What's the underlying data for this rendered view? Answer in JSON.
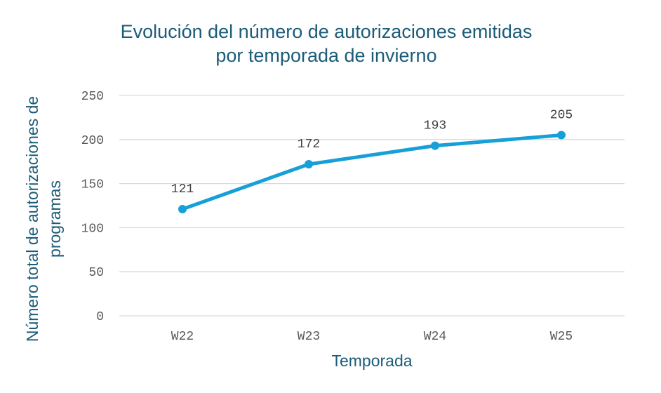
{
  "chart_data": {
    "type": "line",
    "title": [
      "Evolución del número de autorizaciones emitidas",
      "por temporada de invierno"
    ],
    "xlabel": "Temporada",
    "ylabel": [
      "Número total de autorizaciones de",
      "programas"
    ],
    "categories": [
      "W22",
      "W23",
      "W24",
      "W25"
    ],
    "values": [
      121,
      172,
      193,
      205
    ],
    "data_labels": [
      "121",
      "172",
      "193",
      "205"
    ],
    "ylim": [
      0,
      250
    ],
    "yticks": [
      "0",
      "50",
      "100",
      "150",
      "200",
      "250"
    ],
    "grid": true,
    "legend": "none",
    "colors": {
      "line": "#179fd8",
      "title": "#1b5c78",
      "grid": "#d9d9d9"
    }
  }
}
